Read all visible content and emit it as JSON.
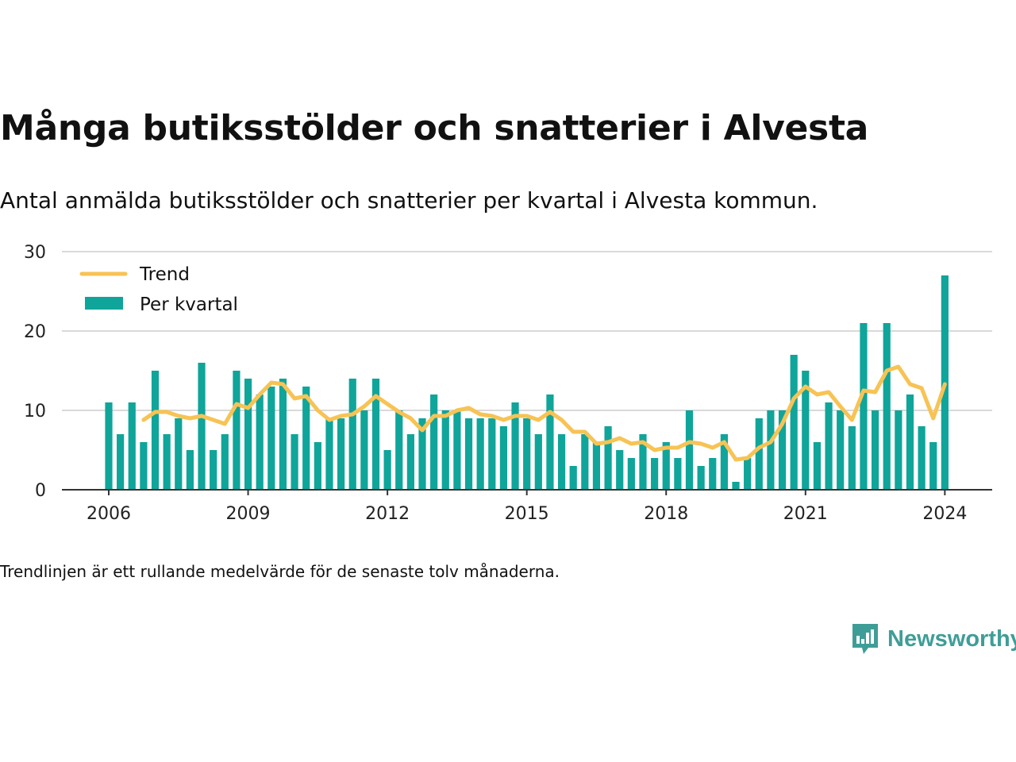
{
  "title": "Många butiksstölder och snatterier i Alvesta",
  "subtitle": "Antal anmälda butiksstölder och snatterier per kvartal i Alvesta kommun.",
  "note": "Trendlinjen är ett rullande medelvärde för de senaste tolv månaderna.",
  "brand": {
    "name": "Newsworthy",
    "icon": "newsworthy-logo-icon",
    "color": "#3e9e97"
  },
  "colors": {
    "bar": "#0fa59a",
    "trend": "#f7c354",
    "grid": "#d9d9d9",
    "axis": "#333333"
  },
  "chart_data": {
    "type": "bar",
    "legend_position": "top-left",
    "grid": true,
    "ylim": [
      0,
      30
    ],
    "yticks": [
      0,
      10,
      20,
      30
    ],
    "xticks": [
      {
        "label": "2006",
        "value": 2006
      },
      {
        "label": "2009",
        "value": 2009
      },
      {
        "label": "2012",
        "value": 2012
      },
      {
        "label": "2015",
        "value": 2015
      },
      {
        "label": "2018",
        "value": 2018
      },
      {
        "label": "2021",
        "value": 2021
      },
      {
        "label": "2024",
        "value": 2024
      }
    ],
    "x": [
      "2006-Q1",
      "2006-Q2",
      "2006-Q3",
      "2006-Q4",
      "2007-Q1",
      "2007-Q2",
      "2007-Q3",
      "2007-Q4",
      "2008-Q1",
      "2008-Q2",
      "2008-Q3",
      "2008-Q4",
      "2009-Q1",
      "2009-Q2",
      "2009-Q3",
      "2009-Q4",
      "2010-Q1",
      "2010-Q2",
      "2010-Q3",
      "2010-Q4",
      "2011-Q1",
      "2011-Q2",
      "2011-Q3",
      "2011-Q4",
      "2012-Q1",
      "2012-Q2",
      "2012-Q3",
      "2012-Q4",
      "2013-Q1",
      "2013-Q2",
      "2013-Q3",
      "2013-Q4",
      "2014-Q1",
      "2014-Q2",
      "2014-Q3",
      "2014-Q4",
      "2015-Q1",
      "2015-Q2",
      "2015-Q3",
      "2015-Q4",
      "2016-Q1",
      "2016-Q2",
      "2016-Q3",
      "2016-Q4",
      "2017-Q1",
      "2017-Q2",
      "2017-Q3",
      "2017-Q4",
      "2018-Q1",
      "2018-Q2",
      "2018-Q3",
      "2018-Q4",
      "2019-Q1",
      "2019-Q2",
      "2019-Q3",
      "2019-Q4",
      "2020-Q1",
      "2020-Q2",
      "2020-Q3",
      "2020-Q4",
      "2021-Q1",
      "2021-Q2",
      "2021-Q3",
      "2021-Q4",
      "2022-Q1",
      "2022-Q2",
      "2022-Q3",
      "2022-Q4",
      "2023-Q1",
      "2023-Q2",
      "2023-Q3",
      "2023-Q4",
      "2024-Q1"
    ],
    "series": [
      {
        "name": "Per kvartal",
        "type": "bar",
        "values": [
          11,
          7,
          11,
          6,
          15,
          7,
          9,
          5,
          16,
          5,
          7,
          15,
          14,
          12,
          13,
          14,
          7,
          13,
          6,
          9,
          9,
          14,
          10,
          14,
          5,
          10,
          7,
          9,
          12,
          10,
          10,
          9,
          9,
          9,
          8,
          11,
          9,
          7,
          12,
          7,
          3,
          7,
          6,
          8,
          5,
          4,
          7,
          4,
          6,
          4,
          10,
          3,
          4,
          7,
          1,
          4,
          9,
          10,
          10,
          17,
          15,
          6,
          11,
          10,
          8,
          21,
          10,
          21,
          10,
          12,
          8,
          6,
          27
        ]
      },
      {
        "name": "Trend",
        "type": "line",
        "values": [
          null,
          null,
          null,
          8.8,
          9.8,
          9.8,
          9.3,
          9.0,
          9.3,
          8.8,
          8.3,
          10.8,
          10.3,
          12.0,
          13.5,
          13.3,
          11.5,
          11.8,
          10.0,
          8.8,
          9.3,
          9.5,
          10.5,
          11.8,
          10.8,
          9.8,
          9.0,
          7.5,
          9.3,
          9.3,
          10.0,
          10.3,
          9.5,
          9.3,
          8.8,
          9.3,
          9.3,
          8.8,
          9.8,
          8.8,
          7.3,
          7.3,
          5.8,
          6.0,
          6.5,
          5.8,
          6.0,
          5.0,
          5.3,
          5.3,
          6.0,
          5.8,
          5.3,
          6.0,
          3.8,
          4.0,
          5.3,
          6.0,
          8.3,
          11.5,
          13.0,
          12.0,
          12.3,
          10.5,
          8.8,
          12.5,
          12.3,
          15.0,
          15.5,
          13.3,
          12.8,
          9.0,
          13.3
        ]
      }
    ]
  }
}
